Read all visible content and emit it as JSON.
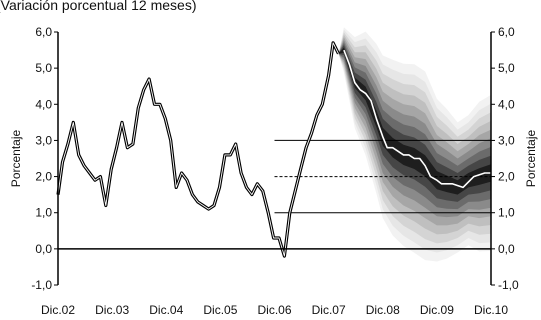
{
  "chart_data": {
    "type": "area",
    "title": "(Variación porcentual 12 meses)",
    "xlabel": "",
    "ylabel": "Porcentaje",
    "ylabel_right": "Porcentaje",
    "xlim": [
      2002.917,
      2010.917
    ],
    "ylim": [
      -1.0,
      6.0
    ],
    "y_ticks": [
      -1.0,
      0.0,
      1.0,
      2.0,
      3.0,
      4.0,
      5.0,
      6.0
    ],
    "y_tick_labels": [
      "-1,0",
      "0,0",
      "1,0",
      "2,0",
      "3,0",
      "4,0",
      "5,0",
      "6,0"
    ],
    "x_ticks": [
      2002.917,
      2003.917,
      2004.917,
      2005.917,
      2006.917,
      2007.917,
      2008.917,
      2009.917,
      2010.917
    ],
    "x_tick_labels": [
      "Dic.02",
      "Dic.03",
      "Dic.04",
      "Dic.05",
      "Dic.06",
      "Dic.07",
      "Dic.08",
      "Dic.09",
      "Dic.10"
    ],
    "grid": false,
    "colors": {
      "history_outer": "#000000",
      "history_inner": "#ffffff",
      "forecast_center": "#ffffff"
    },
    "series": [
      {
        "kind": "history",
        "x": [
          2002.917,
          2003.0,
          2003.1,
          2003.2,
          2003.3,
          2003.4,
          2003.5,
          2003.6,
          2003.7,
          2003.8,
          2003.9,
          2004.0,
          2004.1,
          2004.2,
          2004.3,
          2004.4,
          2004.5,
          2004.6,
          2004.7,
          2004.8,
          2004.9,
          2005.0,
          2005.1,
          2005.2,
          2005.3,
          2005.4,
          2005.5,
          2005.6,
          2005.7,
          2005.8,
          2005.9,
          2006.0,
          2006.1,
          2006.2,
          2006.3,
          2006.4,
          2006.5,
          2006.6,
          2006.7,
          2006.8,
          2006.9,
          2007.0,
          2007.1,
          2007.2,
          2007.3,
          2007.4,
          2007.5,
          2007.6,
          2007.7,
          2007.8,
          2007.917,
          2008.0,
          2008.1
        ],
        "y": [
          1.5,
          2.4,
          2.9,
          3.5,
          2.6,
          2.3,
          2.1,
          1.9,
          2.0,
          1.2,
          2.2,
          2.8,
          3.5,
          2.8,
          2.9,
          3.9,
          4.4,
          4.7,
          4.0,
          4.0,
          3.6,
          3.0,
          1.7,
          2.1,
          1.9,
          1.5,
          1.3,
          1.2,
          1.1,
          1.2,
          1.7,
          2.6,
          2.6,
          2.9,
          2.1,
          1.7,
          1.5,
          1.8,
          1.6,
          1.0,
          0.3,
          0.3,
          -0.2,
          1.0,
          1.6,
          2.2,
          2.8,
          3.2,
          3.7,
          4.0,
          4.8,
          5.7,
          5.4
        ]
      },
      {
        "kind": "forecast-center",
        "x": [
          2008.2,
          2008.3,
          2008.4,
          2008.5,
          2008.6,
          2008.7,
          2008.8,
          2008.917,
          2009.0,
          2009.1,
          2009.2,
          2009.3,
          2009.4,
          2009.5,
          2009.6,
          2009.7,
          2009.8,
          2009.917,
          2010.0,
          2010.2,
          2010.4,
          2010.6,
          2010.8,
          2010.917
        ],
        "y": [
          5.5,
          5.1,
          4.6,
          4.4,
          4.3,
          4.1,
          3.6,
          3.1,
          2.8,
          2.8,
          2.7,
          2.6,
          2.6,
          2.5,
          2.5,
          2.3,
          2.0,
          1.9,
          1.8,
          1.8,
          1.7,
          2.0,
          2.1,
          2.1
        ]
      }
    ],
    "fan": {
      "x": [
        2008.1,
        2008.2,
        2008.4,
        2008.6,
        2008.8,
        2008.917,
        2009.1,
        2009.3,
        2009.5,
        2009.7,
        2009.917,
        2010.1,
        2010.3,
        2010.5,
        2010.7,
        2010.917
      ],
      "center": [
        5.4,
        5.5,
        4.6,
        4.3,
        3.6,
        3.1,
        2.8,
        2.6,
        2.5,
        2.3,
        1.9,
        1.8,
        1.7,
        1.9,
        2.0,
        2.1
      ],
      "width_at_90": [
        0.0,
        0.7,
        1.4,
        1.9,
        2.3,
        2.5,
        2.7,
        2.8,
        2.9,
        2.9,
        2.5,
        2.3,
        2.0,
        2.0,
        2.3,
        2.4
      ],
      "bands": [
        0.9,
        0.8,
        0.7,
        0.6,
        0.5,
        0.4,
        0.3,
        0.2,
        0.1
      ],
      "band_colors": [
        "#f2f2f2",
        "#e6e6e6",
        "#d4d4d4",
        "#bfbfbf",
        "#a6a6a6",
        "#8a8a8a",
        "#6b6b6b",
        "#464646",
        "#1e1e1e"
      ]
    },
    "reference_lines": [
      {
        "y": 3.0,
        "style": "solid",
        "x_from": 2006.917
      },
      {
        "y": 2.0,
        "style": "dashed",
        "x_from": 2006.917
      },
      {
        "y": 1.0,
        "style": "solid",
        "x_from": 2006.917
      }
    ]
  }
}
